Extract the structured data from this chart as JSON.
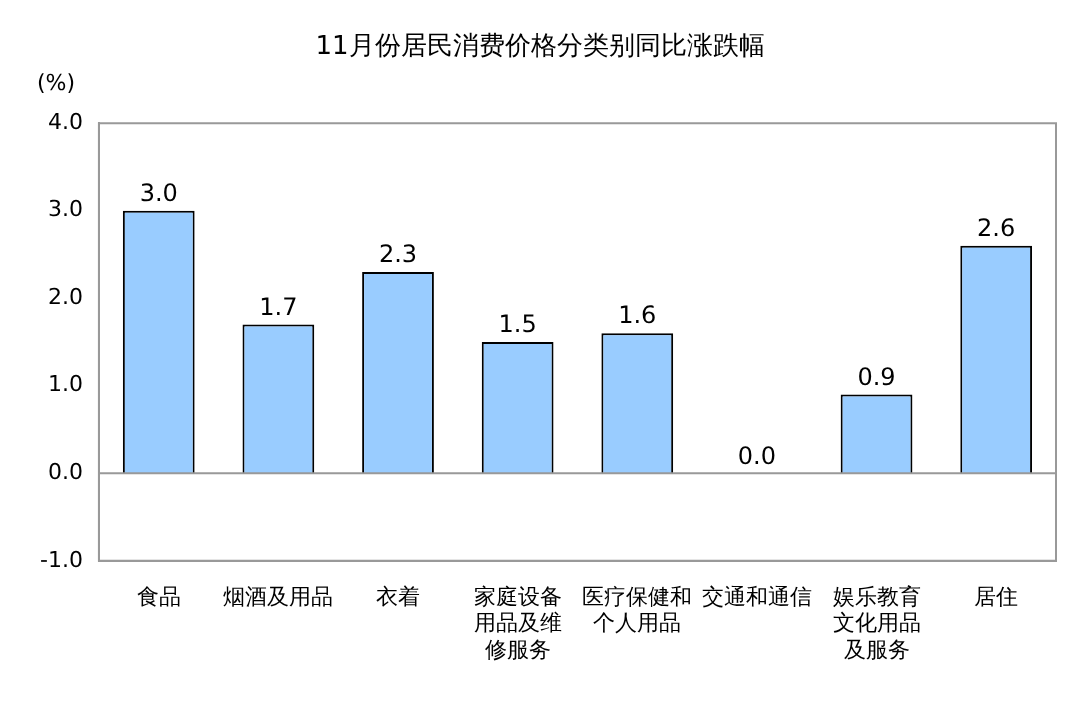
{
  "chart_data": {
    "type": "bar",
    "title": "11月份居民消费价格分类别同比涨跌幅",
    "ylabel": "(%)",
    "categories": [
      "食品",
      "烟酒及用品",
      "衣着",
      "家庭设备用品及维修服务",
      "医疗保健和个人用品",
      "交通和通信",
      "娱乐教育文化用品及服务",
      "居住"
    ],
    "values": [
      3.0,
      1.7,
      2.3,
      1.5,
      1.6,
      0.0,
      0.9,
      2.6
    ],
    "value_labels": [
      "3.0",
      "1.7",
      "2.3",
      "1.5",
      "1.6",
      "0.0",
      "0.9",
      "2.6"
    ],
    "color": "#99ccff",
    "ylim": [
      -1,
      4
    ],
    "yticks": [
      {
        "value": -1,
        "label": "-1.0"
      },
      {
        "value": 0,
        "label": "0.0"
      },
      {
        "value": 1,
        "label": "1.0"
      },
      {
        "value": 2,
        "label": "2.0"
      },
      {
        "value": 3,
        "label": "3.0"
      },
      {
        "value": 4,
        "label": "4.0"
      }
    ],
    "legend": false
  }
}
